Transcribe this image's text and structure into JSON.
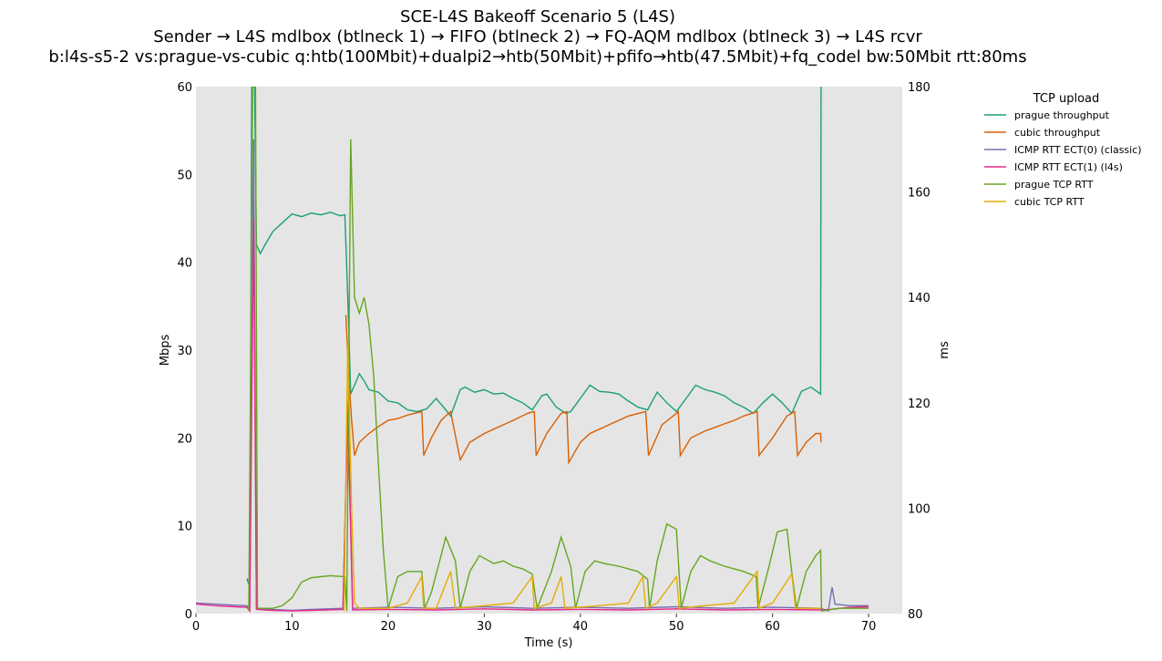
{
  "chart_data": {
    "type": "line",
    "title": [
      "SCE-L4S Bakeoff Scenario 5 (L4S)",
      "Sender → L4S mdlbox (btlneck 1) → FIFO (btlneck 2) → FQ-AQM mdlbox (btlneck 3) → L4S rcvr",
      "b:l4s-s5-2 vs:prague-vs-cubic q:htb(100Mbit)+dualpi2→htb(50Mbit)+pfifo→htb(47.5Mbit)+fq_codel bw:50Mbit rtt:80ms"
    ],
    "xlabel": "Time (s)",
    "ylabel": "Mbps",
    "y2label": "ms",
    "xlim": [
      0,
      73.5
    ],
    "ylim": [
      0,
      60
    ],
    "y2lim": [
      80,
      180
    ],
    "xticks": [
      0,
      10,
      20,
      30,
      40,
      50,
      60,
      70
    ],
    "yticks": [
      0,
      10,
      20,
      30,
      40,
      50,
      60
    ],
    "y2ticks": [
      80,
      100,
      120,
      140,
      160,
      180
    ],
    "grid": false,
    "background": "#e5e5e5",
    "legend": {
      "title": "TCP upload",
      "placement": "outside-right"
    },
    "series": [
      {
        "name": "prague throughput",
        "axis": "left",
        "color": "#1b9e77",
        "points": [
          [
            5.3,
            4
          ],
          [
            5.6,
            3
          ],
          [
            5.8,
            60
          ],
          [
            6.1,
            60
          ],
          [
            6.3,
            42
          ],
          [
            6.7,
            41
          ],
          [
            7.2,
            42
          ],
          [
            8,
            43.5
          ],
          [
            9,
            44.5
          ],
          [
            10,
            45.5
          ],
          [
            11,
            45.2
          ],
          [
            12,
            45.6
          ],
          [
            13,
            45.4
          ],
          [
            14,
            45.7
          ],
          [
            15,
            45.3
          ],
          [
            15.5,
            45.4
          ],
          [
            15.8,
            36
          ],
          [
            16.1,
            25
          ],
          [
            16.5,
            26
          ],
          [
            17,
            27.3
          ],
          [
            17.5,
            26.5
          ],
          [
            18,
            25.5
          ],
          [
            19,
            25.2
          ],
          [
            20,
            24.2
          ],
          [
            21,
            24
          ],
          [
            22,
            23.2
          ],
          [
            23,
            23
          ],
          [
            24,
            23.3
          ],
          [
            25,
            24.5
          ],
          [
            26,
            23.2
          ],
          [
            26.5,
            22.5
          ],
          [
            27.5,
            25.5
          ],
          [
            28,
            25.8
          ],
          [
            29,
            25.2
          ],
          [
            30,
            25.5
          ],
          [
            31,
            25
          ],
          [
            32,
            25.1
          ],
          [
            33,
            24.5
          ],
          [
            34,
            24
          ],
          [
            35,
            23.2
          ],
          [
            36,
            24.8
          ],
          [
            36.5,
            25
          ],
          [
            37.5,
            23.5
          ],
          [
            38.5,
            22.8
          ],
          [
            39,
            23
          ],
          [
            40,
            24.5
          ],
          [
            41,
            26
          ],
          [
            42,
            25.3
          ],
          [
            43,
            25.2
          ],
          [
            44,
            25
          ],
          [
            45,
            24.2
          ],
          [
            46,
            23.5
          ],
          [
            47,
            23.2
          ],
          [
            48,
            25.2
          ],
          [
            49,
            24
          ],
          [
            50,
            23
          ],
          [
            51,
            24.5
          ],
          [
            52,
            26
          ],
          [
            53,
            25.5
          ],
          [
            54,
            25.2
          ],
          [
            55,
            24.8
          ],
          [
            56,
            24
          ],
          [
            57,
            23.5
          ],
          [
            58,
            22.8
          ],
          [
            59,
            24
          ],
          [
            60,
            25
          ],
          [
            61,
            24
          ],
          [
            62,
            22.8
          ],
          [
            63,
            25.3
          ],
          [
            64,
            25.8
          ],
          [
            65,
            25
          ],
          [
            65.05,
            60
          ]
        ]
      },
      {
        "name": "cubic throughput",
        "axis": "left",
        "color": "#d95f02",
        "points": [
          [
            15.6,
            34
          ],
          [
            15.9,
            27
          ],
          [
            16.2,
            22
          ],
          [
            16.5,
            18
          ],
          [
            17,
            19.5
          ],
          [
            18,
            20.5
          ],
          [
            19,
            21.3
          ],
          [
            20,
            22
          ],
          [
            21,
            22.2
          ],
          [
            22,
            22.6
          ],
          [
            23.5,
            23
          ],
          [
            23.7,
            18
          ],
          [
            24.5,
            20
          ],
          [
            25.5,
            22
          ],
          [
            26.5,
            23
          ],
          [
            27.5,
            17.5
          ],
          [
            28.5,
            19.5
          ],
          [
            30,
            20.5
          ],
          [
            31,
            21
          ],
          [
            32,
            21.5
          ],
          [
            33,
            22
          ],
          [
            34.5,
            22.8
          ],
          [
            35.2,
            23
          ],
          [
            35.4,
            18
          ],
          [
            36.5,
            20.5
          ],
          [
            38,
            22.8
          ],
          [
            38.6,
            23
          ],
          [
            38.8,
            17.2
          ],
          [
            40,
            19.5
          ],
          [
            41,
            20.5
          ],
          [
            42,
            21
          ],
          [
            43,
            21.5
          ],
          [
            44,
            22
          ],
          [
            45,
            22.5
          ],
          [
            46.8,
            23
          ],
          [
            47.1,
            18
          ],
          [
            48.5,
            21.5
          ],
          [
            50,
            22.8
          ],
          [
            50.2,
            23
          ],
          [
            50.4,
            18
          ],
          [
            51.5,
            20
          ],
          [
            53,
            20.8
          ],
          [
            54,
            21.2
          ],
          [
            55,
            21.6
          ],
          [
            56,
            22
          ],
          [
            57,
            22.5
          ],
          [
            58.4,
            23
          ],
          [
            58.6,
            18
          ],
          [
            60,
            20
          ],
          [
            61.5,
            22.5
          ],
          [
            62.3,
            23
          ],
          [
            62.6,
            18
          ],
          [
            63.5,
            19.5
          ],
          [
            64.5,
            20.5
          ],
          [
            65,
            20.5
          ],
          [
            65.05,
            19.5
          ]
        ]
      },
      {
        "name": "ICMP RTT ECT(0) (classic)",
        "axis": "right",
        "color": "#7570b3",
        "points": [
          [
            0,
            82
          ],
          [
            2,
            81.8
          ],
          [
            4,
            81.6
          ],
          [
            5.3,
            81.5
          ],
          [
            5.6,
            80.5
          ],
          [
            6.0,
            170
          ],
          [
            6.3,
            81
          ],
          [
            8,
            80.8
          ],
          [
            10,
            80.6
          ],
          [
            12,
            80.8
          ],
          [
            15.3,
            81
          ],
          [
            15.8,
            120
          ],
          [
            16.3,
            81
          ],
          [
            20,
            81.2
          ],
          [
            25,
            81
          ],
          [
            30,
            81.3
          ],
          [
            35,
            81
          ],
          [
            40,
            81.2
          ],
          [
            45,
            81
          ],
          [
            50,
            81.3
          ],
          [
            55,
            81
          ],
          [
            60,
            81.2
          ],
          [
            65,
            81
          ],
          [
            65.8,
            80.5
          ],
          [
            66.2,
            85
          ],
          [
            66.5,
            81.8
          ],
          [
            68,
            81.5
          ],
          [
            70,
            81.5
          ]
        ]
      },
      {
        "name": "ICMP RTT ECT(1) (l4s)",
        "axis": "right",
        "color": "#e7298a",
        "points": [
          [
            0,
            81.8
          ],
          [
            2,
            81.5
          ],
          [
            4,
            81.3
          ],
          [
            5.3,
            81.2
          ],
          [
            5.6,
            80.5
          ],
          [
            6.0,
            155
          ],
          [
            6.3,
            80.8
          ],
          [
            8,
            80.6
          ],
          [
            10,
            80.5
          ],
          [
            12,
            80.6
          ],
          [
            15.3,
            80.8
          ],
          [
            15.8,
            118
          ],
          [
            16.3,
            80.7
          ],
          [
            20,
            80.8
          ],
          [
            25,
            80.7
          ],
          [
            30,
            80.9
          ],
          [
            35,
            80.7
          ],
          [
            40,
            80.8
          ],
          [
            45,
            80.7
          ],
          [
            50,
            80.9
          ],
          [
            55,
            80.7
          ],
          [
            60,
            80.8
          ],
          [
            65,
            80.7
          ],
          [
            66,
            80.8
          ],
          [
            68,
            81.2
          ],
          [
            70,
            81.3
          ]
        ]
      },
      {
        "name": "prague TCP RTT",
        "axis": "right",
        "color": "#66a61e",
        "points": [
          [
            5.5,
            80.5
          ],
          [
            5.9,
            180
          ],
          [
            6.2,
            180
          ],
          [
            6.4,
            81
          ],
          [
            8,
            81
          ],
          [
            9,
            81.5
          ],
          [
            10,
            83
          ],
          [
            11,
            86
          ],
          [
            12,
            86.8
          ],
          [
            13,
            87
          ],
          [
            14,
            87.2
          ],
          [
            15.5,
            87
          ],
          [
            15.7,
            80.5
          ],
          [
            16.1,
            170
          ],
          [
            16.5,
            140
          ],
          [
            17,
            137
          ],
          [
            17.5,
            140
          ],
          [
            18,
            135
          ],
          [
            18.5,
            125
          ],
          [
            19,
            108
          ],
          [
            19.5,
            92
          ],
          [
            20,
            81
          ],
          [
            21,
            87
          ],
          [
            22,
            88
          ],
          [
            23.5,
            88
          ],
          [
            23.8,
            81
          ],
          [
            24.5,
            84
          ],
          [
            25.5,
            91
          ],
          [
            26,
            94.5
          ],
          [
            27,
            90
          ],
          [
            27.5,
            81
          ],
          [
            28.5,
            88
          ],
          [
            29.5,
            91
          ],
          [
            30,
            90.5
          ],
          [
            31,
            89.5
          ],
          [
            32,
            90
          ],
          [
            33,
            89
          ],
          [
            34,
            88.5
          ],
          [
            35,
            87.5
          ],
          [
            35.5,
            81
          ],
          [
            37,
            88
          ],
          [
            38,
            94.5
          ],
          [
            39,
            89
          ],
          [
            39.5,
            81
          ],
          [
            40.5,
            88
          ],
          [
            41.5,
            90
          ],
          [
            42.5,
            89.5
          ],
          [
            44,
            89
          ],
          [
            45,
            88.5
          ],
          [
            46,
            88
          ],
          [
            47,
            86.5
          ],
          [
            47.2,
            81
          ],
          [
            48,
            90
          ],
          [
            49,
            97
          ],
          [
            50,
            96
          ],
          [
            50.5,
            81
          ],
          [
            51.5,
            88
          ],
          [
            52.5,
            91
          ],
          [
            53.5,
            90
          ],
          [
            55,
            89
          ],
          [
            56,
            88.5
          ],
          [
            57,
            88
          ],
          [
            58.3,
            87
          ],
          [
            58.5,
            81
          ],
          [
            59.5,
            88
          ],
          [
            60.5,
            95.5
          ],
          [
            61.5,
            96
          ],
          [
            62,
            88
          ],
          [
            62.5,
            81
          ],
          [
            63.5,
            88
          ],
          [
            64.5,
            91
          ],
          [
            65,
            92
          ],
          [
            65.1,
            80.5
          ],
          [
            67,
            81
          ],
          [
            70,
            81
          ]
        ]
      },
      {
        "name": "cubic TCP RTT",
        "axis": "right",
        "color": "#e6ab02",
        "points": [
          [
            15.4,
            80.5
          ],
          [
            15.8,
            131
          ],
          [
            16.2,
            100
          ],
          [
            16.5,
            82
          ],
          [
            17,
            81
          ],
          [
            20,
            81
          ],
          [
            22,
            82
          ],
          [
            23.5,
            87
          ],
          [
            23.7,
            81
          ],
          [
            25,
            81
          ],
          [
            26.5,
            88
          ],
          [
            27,
            81
          ],
          [
            30,
            81.5
          ],
          [
            33,
            82
          ],
          [
            35,
            87
          ],
          [
            35.2,
            81
          ],
          [
            37,
            82
          ],
          [
            38,
            87
          ],
          [
            38.4,
            81
          ],
          [
            42,
            81.5
          ],
          [
            45,
            82
          ],
          [
            46.5,
            87
          ],
          [
            46.8,
            81
          ],
          [
            48,
            82
          ],
          [
            50,
            87
          ],
          [
            50.3,
            81
          ],
          [
            53,
            81.5
          ],
          [
            56,
            82
          ],
          [
            58.4,
            88
          ],
          [
            58.6,
            81
          ],
          [
            60,
            82
          ],
          [
            62,
            87.5
          ],
          [
            62.4,
            81
          ],
          [
            65,
            81
          ]
        ]
      }
    ]
  }
}
